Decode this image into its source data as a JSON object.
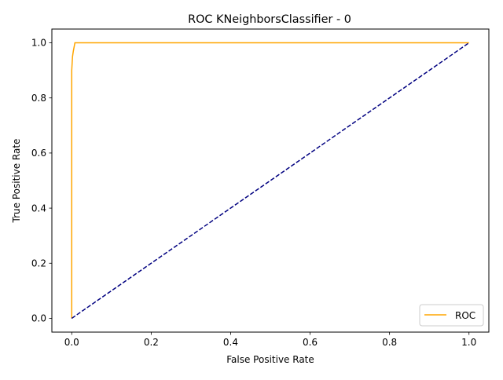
{
  "chart_data": {
    "type": "line",
    "title": "ROC KNeighborsClassifier - 0",
    "xlabel": "False Positive Rate",
    "ylabel": "True Positive Rate",
    "xlim": [
      -0.05,
      1.05
    ],
    "ylim": [
      -0.05,
      1.05
    ],
    "xticks": [
      0.0,
      0.2,
      0.4,
      0.6,
      0.8,
      1.0
    ],
    "yticks": [
      0.0,
      0.2,
      0.4,
      0.6,
      0.8,
      1.0
    ],
    "xtick_labels": [
      "0.0",
      "0.2",
      "0.4",
      "0.6",
      "0.8",
      "1.0"
    ],
    "ytick_labels": [
      "0.0",
      "0.2",
      "0.4",
      "0.6",
      "0.8",
      "1.0"
    ],
    "grid": false,
    "legend_position": "lower-right",
    "series": [
      {
        "name": "ROC",
        "color": "#ffa500",
        "style": "solid",
        "x": [
          0.0,
          0.0,
          0.002,
          0.004,
          0.008,
          1.0
        ],
        "y": [
          0.0,
          0.9,
          0.95,
          0.97,
          1.0,
          1.0
        ]
      },
      {
        "color": "#000080",
        "style": "dashed",
        "x": [
          0.0,
          1.0
        ],
        "y": [
          0.0,
          1.0
        ]
      }
    ]
  }
}
